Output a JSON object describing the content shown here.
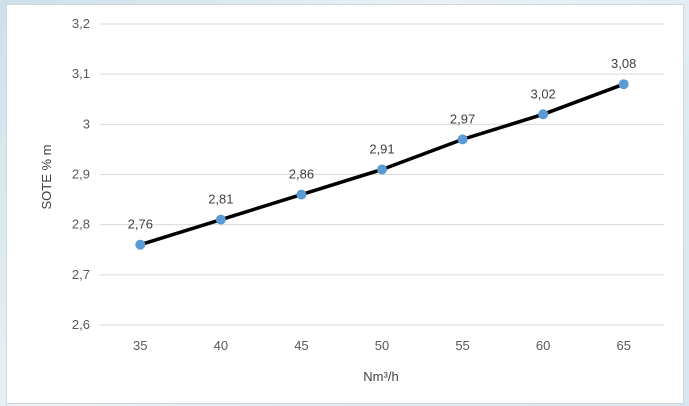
{
  "chart_data": {
    "type": "line",
    "x": [
      35,
      40,
      45,
      50,
      55,
      60,
      65
    ],
    "values": [
      2.76,
      2.81,
      2.86,
      2.91,
      2.97,
      3.02,
      3.08
    ],
    "data_labels": [
      "2,76",
      "2,81",
      "2,86",
      "2,91",
      "2,97",
      "3,02",
      "3,08"
    ],
    "x_tick_labels": [
      "35",
      "40",
      "45",
      "50",
      "55",
      "60",
      "65"
    ],
    "y_ticks": [
      2.6,
      2.7,
      2.8,
      2.9,
      3.0,
      3.1,
      3.2
    ],
    "y_tick_labels": [
      "2,6",
      "2,7",
      "2,8",
      "2,9",
      "3",
      "3,1",
      "3,2"
    ],
    "ylim": [
      2.6,
      3.2
    ],
    "xlabel": "Nm³/h",
    "ylabel": "SOTE % m",
    "grid": true,
    "line_color": "#000000",
    "marker_color": "#5b9bd5",
    "grid_color": "#d9d9d9"
  }
}
